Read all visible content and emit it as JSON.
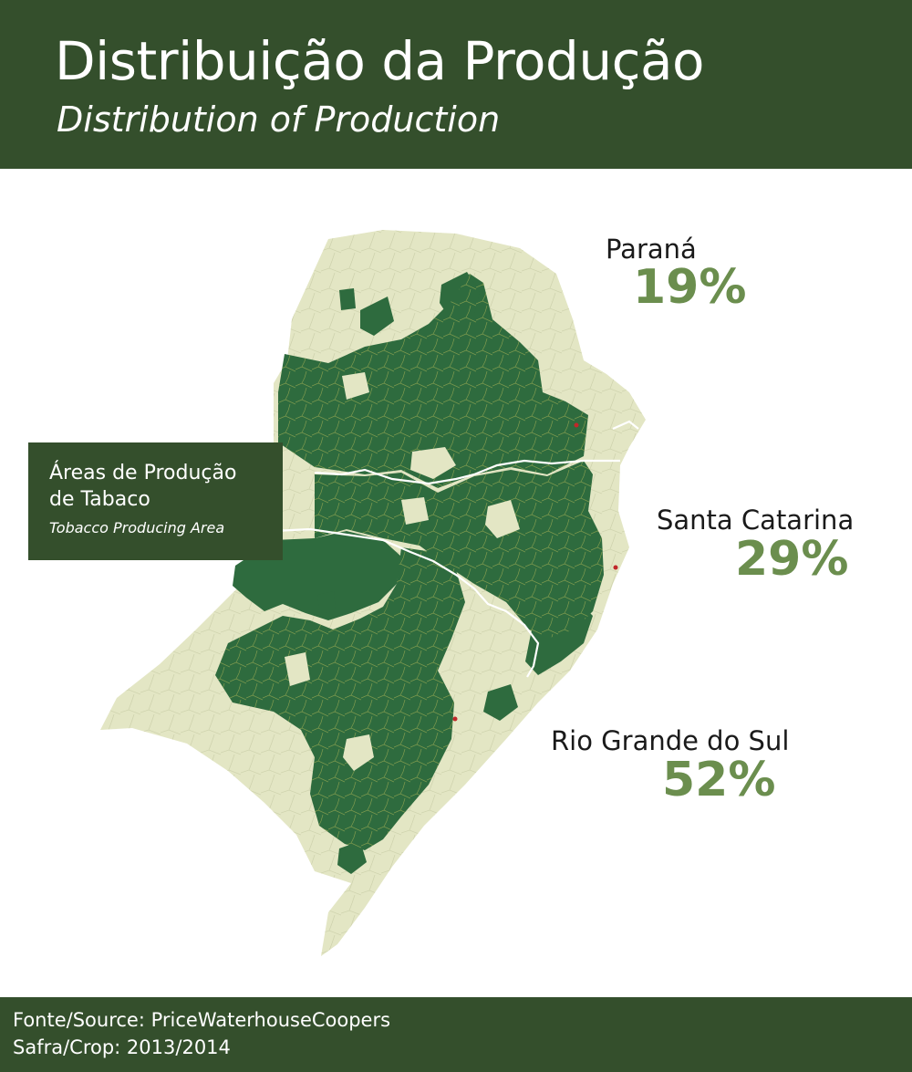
{
  "header": {
    "title": "Distribuição da Produção",
    "subtitle": "Distribution of Production"
  },
  "legend": {
    "label_line1": "Áreas de Produção",
    "label_line2": "de Tabaco",
    "label_en": "Tobacco Producing Area"
  },
  "states": [
    {
      "name": "Paraná",
      "share": "19%"
    },
    {
      "name": "Santa Catarina",
      "share": "29%"
    },
    {
      "name": "Rio Grande do Sul",
      "share": "52%"
    }
  ],
  "colors": {
    "header_bg": "#344f2c",
    "tobacco_area": "#2e6b3e",
    "other_area": "#e3e6c4",
    "percent_text": "#6b8e4e",
    "state_border": "#ffffff",
    "city_marker": "#c0282a"
  },
  "footer": {
    "source": "Fonte/Source: PriceWaterhouseCoopers",
    "crop": "Safra/Crop: 2013/2014"
  }
}
